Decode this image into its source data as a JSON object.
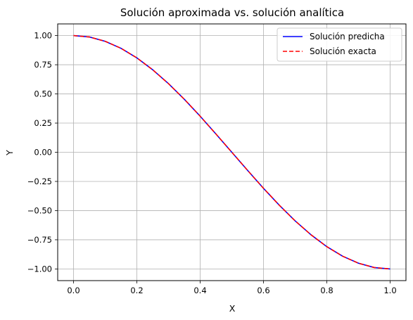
{
  "chart_data": {
    "type": "line",
    "title": "Solución aproximada vs. solución analítica",
    "xlabel": "X",
    "ylabel": "Y",
    "xlim": [
      -0.05,
      1.05
    ],
    "ylim": [
      -1.1,
      1.1
    ],
    "grid": true,
    "legend_position": "top-right",
    "x_ticks": [
      0.0,
      0.2,
      0.4,
      0.6,
      0.8,
      1.0
    ],
    "x_tick_labels": [
      "0.0",
      "0.2",
      "0.4",
      "0.6",
      "0.8",
      "1.0"
    ],
    "y_ticks": [
      1.0,
      0.75,
      0.5,
      0.25,
      0.0,
      -0.25,
      -0.5,
      -0.75,
      -1.0
    ],
    "y_tick_labels": [
      "1.00",
      "0.75",
      "0.50",
      "0.25",
      "0.00",
      "−0.25",
      "−0.50",
      "−0.75",
      "−1.00"
    ],
    "x": [
      0.0,
      0.05,
      0.1,
      0.15,
      0.2,
      0.25,
      0.3,
      0.35,
      0.4,
      0.45,
      0.5,
      0.55,
      0.6,
      0.65,
      0.7,
      0.75,
      0.8,
      0.85,
      0.9,
      0.95,
      1.0
    ],
    "series": [
      {
        "name": "Solución predicha",
        "color": "#0000ff",
        "style": "solid",
        "values": [
          1.0,
          0.988,
          0.951,
          0.891,
          0.809,
          0.707,
          0.588,
          0.454,
          0.309,
          0.156,
          0.0,
          -0.156,
          -0.309,
          -0.454,
          -0.588,
          -0.707,
          -0.809,
          -0.891,
          -0.951,
          -0.988,
          -1.0
        ]
      },
      {
        "name": "Solución exacta",
        "color": "#ff0000",
        "style": "dashed",
        "values": [
          1.0,
          0.988,
          0.951,
          0.891,
          0.809,
          0.707,
          0.588,
          0.454,
          0.309,
          0.156,
          0.0,
          -0.156,
          -0.309,
          -0.454,
          -0.588,
          -0.707,
          -0.809,
          -0.891,
          -0.951,
          -0.988,
          -1.0
        ]
      }
    ]
  }
}
